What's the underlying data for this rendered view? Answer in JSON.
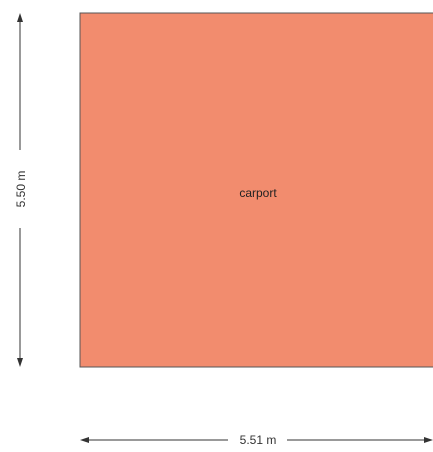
{
  "room": {
    "label": "carport",
    "fill_color": "#f28c6e",
    "stroke_color": "#555555"
  },
  "dimensions": {
    "height_label": "5.50 m",
    "width_label": "5.51 m"
  },
  "colors": {
    "dimension_line": "#333333",
    "background": "#ffffff"
  }
}
